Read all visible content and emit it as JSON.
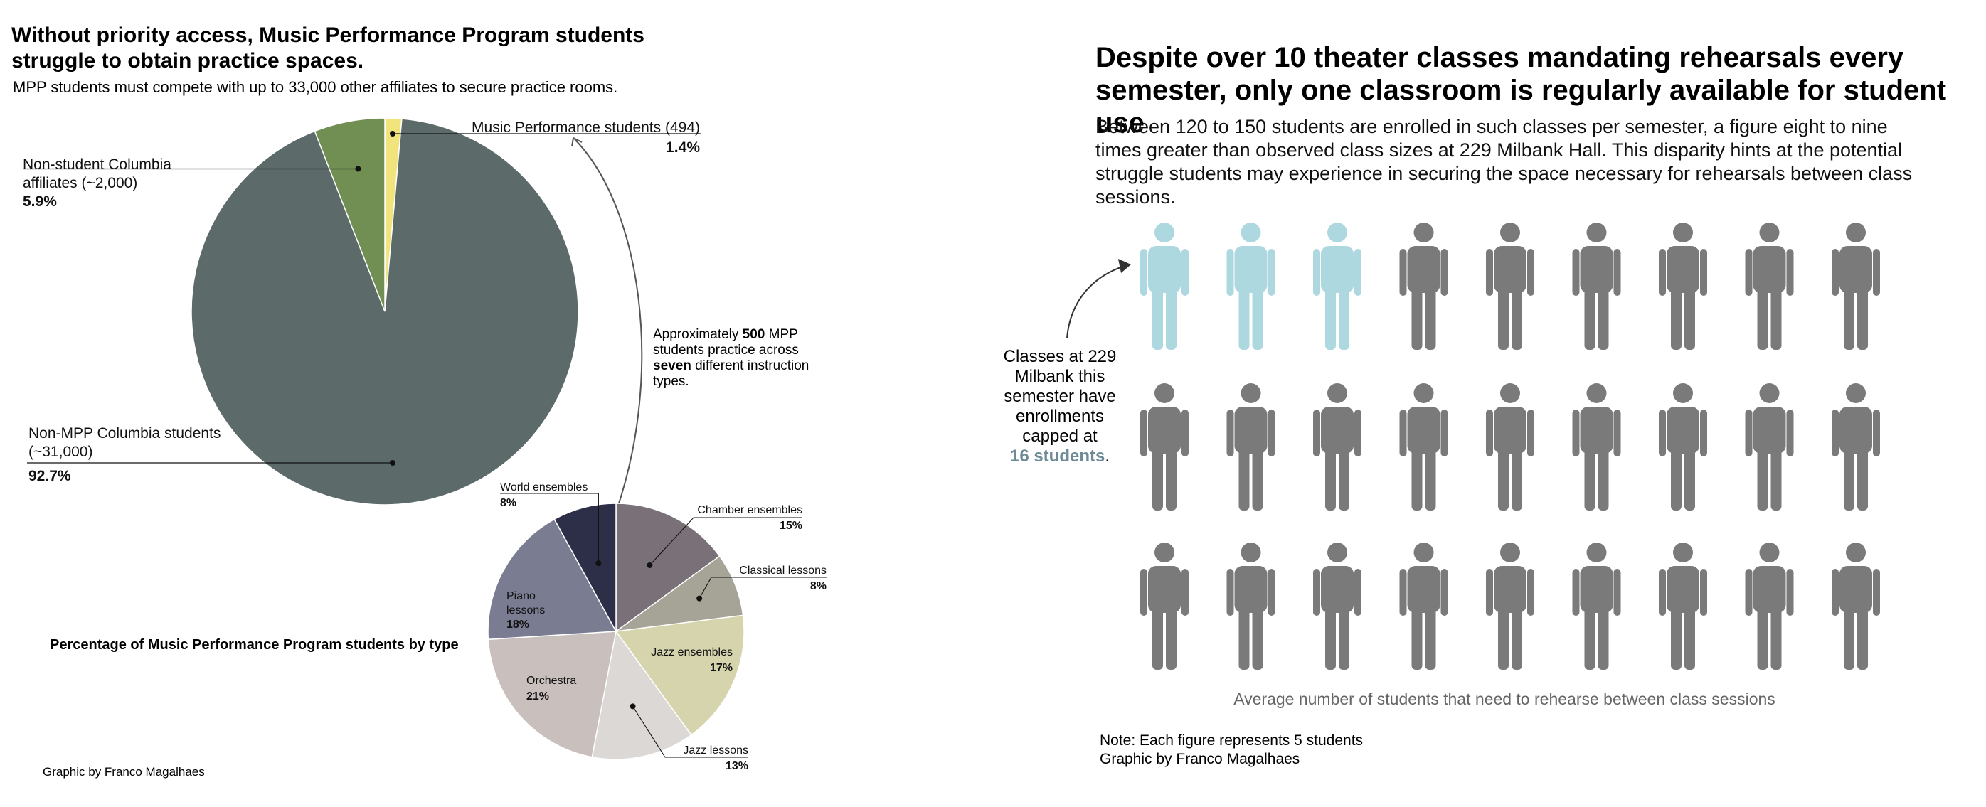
{
  "left_panel": {
    "title": "Without priority access, Music Performance Program students struggle to obtain practice spaces.",
    "subtitle": "MPP students must compete with up to 33,000 other affiliates to secure practice rooms.",
    "annotation": {
      "prefix": "Approximately ",
      "count": "500",
      "middle": " MPP students practice across ",
      "types": "seven",
      "suffix": " different instruction types."
    },
    "pie2_caption": "Percentage of Music Performance Program students by type",
    "credit": "Graphic by Franco Magalhaes"
  },
  "right_panel": {
    "title": "Despite over 10 theater classes mandating rehearsals every semester, only one classroom is regularly available for student use",
    "body": "Between 120 to 150 students are enrolled in such classes per semester, a figure eight to nine times greater than observed class sizes at 229 Milbank Hall. This disparity hints at the potential struggle students may experience in securing the space necessary for rehearsals between class sessions.",
    "callout": {
      "text": "Classes at 229 Milbank this semester have enrollments capped at",
      "value": "16 students",
      "period": "."
    },
    "caption": "Average number of students that need to rehearse between class sessions",
    "note": "Note: Each figure represents 5 students",
    "credit": "Graphic by Franco Magalhaes"
  },
  "colors": {
    "highlight_figure": "#aed8e0",
    "figure": "#7a7a7a",
    "callout_value": "#6d8a96"
  },
  "chart_data": [
    {
      "type": "pie",
      "slices": [
        {
          "label": "Music Performance students (494)",
          "percent": "1.4%",
          "value": 1.4,
          "color": "#f2e47c"
        },
        {
          "label": "Non-MPP Columbia students (~31,000)",
          "percent": "92.7%",
          "value": 92.7,
          "color": "#5c6b6a"
        },
        {
          "label": "Non-student Columbia affiliates (~2,000)",
          "percent": "5.9%",
          "value": 5.9,
          "color": "#718f52"
        }
      ]
    },
    {
      "type": "pie",
      "title": "Percentage of Music Performance Program students by type",
      "slices": [
        {
          "label": "Chamber ensembles",
          "percent": "15%",
          "value": 15,
          "color": "#7a7078"
        },
        {
          "label": "Classical lessons",
          "percent": "8%",
          "value": 8,
          "color": "#a5a496"
        },
        {
          "label": "Jazz ensembles",
          "percent": "17%",
          "value": 17,
          "color": "#d5d4ad"
        },
        {
          "label": "Jazz lessons",
          "percent": "13%",
          "value": 13,
          "color": "#dcd8d6"
        },
        {
          "label": "Orchestra",
          "percent": "21%",
          "value": 21,
          "color": "#c9c0be"
        },
        {
          "label": "Piano lessons",
          "percent": "18%",
          "value": 18,
          "color": "#7a7c92"
        },
        {
          "label": "World ensembles",
          "percent": "8%",
          "value": 8,
          "color": "#2c2f47"
        }
      ]
    },
    {
      "type": "pictograph",
      "rows": 3,
      "columns": 9,
      "figures": 27,
      "highlighted": 3,
      "students_per_figure": 5
    }
  ]
}
